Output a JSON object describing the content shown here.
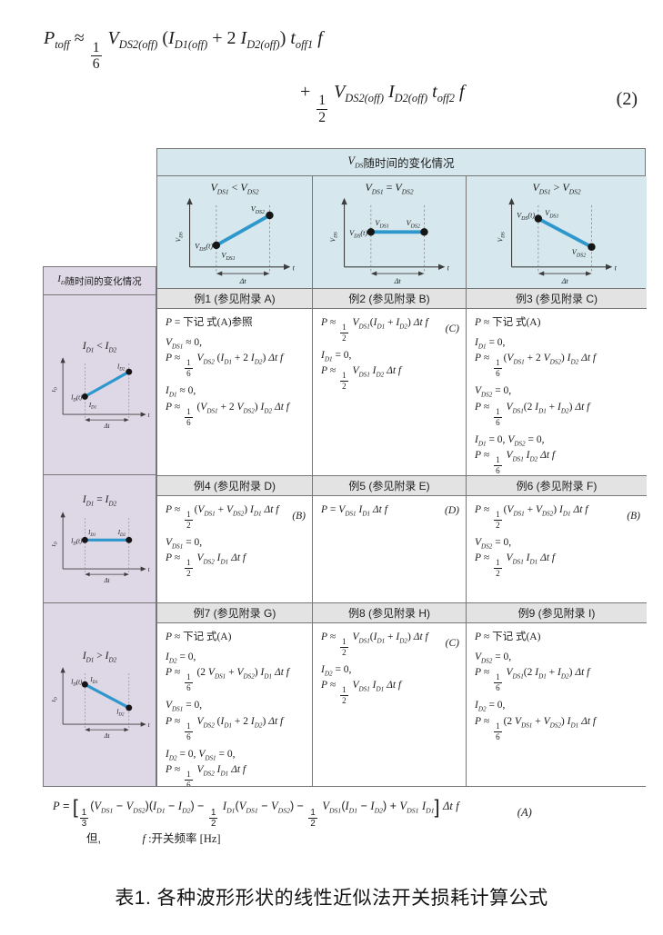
{
  "colors": {
    "header_blue": "#d6e8ee",
    "lavender": "#ddd7e6",
    "cell_header_gray": "#e3e3e3",
    "graph_line_blue": "#2e97cc",
    "border": "#767676"
  },
  "equation2": {
    "line1": "P_toff ≈ {1/6} V_DS2(off) (I_D1(off) + 2 I_D2(off)) t_off1 f",
    "line2": "+ {1/2} V_DS2(off) I_D2(off) t_off2 f",
    "number": "(2)"
  },
  "table": {
    "vds_header": "V_DS随时间的变化情况",
    "id_header": "I_D随时间的变化情况",
    "vds_columns": [
      {
        "title": "V_DS1 < V_DS2",
        "type": "rise"
      },
      {
        "title": "V_DS1 = V_DS2",
        "type": "flat"
      },
      {
        "title": "V_DS1 > V_DS2",
        "type": "fall"
      }
    ],
    "id_rows": [
      {
        "title": "I_D1 < I_D2",
        "type": "rise"
      },
      {
        "title": "I_D1 = I_D2",
        "type": "flat"
      },
      {
        "title": "I_D1 > I_D2",
        "type": "fall"
      }
    ],
    "graph_labels": {
      "vds": {
        "ylabel": {
          "b": "V",
          "s": "DS"
        },
        "pt": {
          "b": "V",
          "s": "DS",
          "a": "(t)"
        },
        "p1": {
          "b": "V",
          "s": "DS1"
        },
        "p2": {
          "b": "V",
          "s": "DS2"
        },
        "dt": "Δt",
        "x": "t"
      },
      "id": {
        "ylabel": {
          "b": "I",
          "s": "D"
        },
        "pt": {
          "b": "I",
          "s": "D",
          "a": "(t)"
        },
        "p1": {
          "b": "I",
          "s": "D1"
        },
        "p2": {
          "b": "I",
          "s": "D2"
        },
        "dt": "Δt",
        "x": "t"
      }
    },
    "cells": [
      {
        "title": "例1 (参见附录 A)",
        "groups": [
          [
            "P = 下记 式(A)参照"
          ],
          [
            "V_DS1 ≈ 0,",
            "P ≈ {1/6} V_DS2 (I_D1 + 2 I_D2) Δt f"
          ],
          [
            "I_D1 ≈ 0,",
            "P ≈ {1/6} (V_DS1 + 2 V_DS2) I_D2 Δt f"
          ]
        ]
      },
      {
        "title": "例2 (参见附录 B)",
        "groups": [
          [
            "P ≈ {1/2} V_DS1(I_D1 + I_D2) Δt f||(C)"
          ],
          [
            "I_D1 = 0,",
            "P ≈ {1/2} V_DS1 I_D2 Δt f"
          ]
        ]
      },
      {
        "title": "例3 (参见附录 C)",
        "groups": [
          [
            "P ≈ 下记 式(A)"
          ],
          [
            "I_D1 = 0,",
            "P ≈ {1/6}(V_DS1 + 2 V_DS2) I_D2 Δt f"
          ],
          [
            "V_DS2 = 0,",
            "P ≈ {1/6} V_DS1(2 I_D1 + I_D2) Δt f"
          ],
          [
            "I_D1 = 0, V_DS2 = 0,",
            "P ≈ {1/6} V_DS1 I_D2 Δt f"
          ]
        ]
      },
      {
        "title": "例4 (参见附录 D)",
        "groups": [
          [
            "P ≈ {1/2}(V_DS1 + V_DS2) I_D1 Δt f||(B)"
          ],
          [
            "V_DS1 = 0,",
            "P ≈ {1/2} V_DS2 I_D1 Δt f"
          ]
        ]
      },
      {
        "title": "例5 (参见附录 E)",
        "groups": [
          [
            "P = V_DS1 I_D1 Δt f||(D)"
          ]
        ]
      },
      {
        "title": "例6 (参见附录 F)",
        "groups": [
          [
            "P ≈ {1/2}(V_DS1 + V_DS2) I_D1 Δt f||(B)"
          ],
          [
            "V_DS2 = 0,",
            "P ≈ {1/2} V_DS1 I_D1 Δt f"
          ]
        ]
      },
      {
        "title": "例7 (参见附录 G)",
        "groups": [
          [
            "P ≈ 下记 式(A)"
          ],
          [
            "I_D2 = 0,",
            "P ≈ {1/6} (2 V_DS1 + V_DS2) I_D1 Δt f"
          ],
          [
            "V_DS1 = 0,",
            "P ≈ {1/6} V_DS2 (I_D1 + 2 I_D2) Δt f"
          ],
          [
            "I_D2 = 0, V_DS1 = 0,",
            "P ≈ {1/6} V_DS2 I_D1 Δt f"
          ]
        ]
      },
      {
        "title": "例8 (参见附录 H)",
        "groups": [
          [
            "P ≈ {1/2} V_DS1(I_D1 + I_D2) Δt f||(C)"
          ],
          [
            "I_D2 = 0,",
            "P ≈ {1/2} V_DS1 I_D1 Δt f"
          ]
        ]
      },
      {
        "title": "例9 (参见附录 I)",
        "groups": [
          [
            "P ≈ 下记 式(A)"
          ],
          [
            "V_DS2 = 0,",
            "P ≈ {1/6} V_DS1(2 I_D1 + I_D2) Δt f"
          ],
          [
            "I_D2 = 0,",
            "P ≈ {1/6}(2 V_DS1 + V_DS2) I_D1 Δt f"
          ]
        ]
      }
    ]
  },
  "formulaA": {
    "body": "P = ⟦{1/3}(V_DS1 − V_DS2)(I_D1 − I_D2) − {1/2} I_D1(V_DS1 − V_DS2) − {1/2} V_DS1(I_D1 − I_D2) + V_DS1 I_D1⟧ Δt f",
    "tag": "(A)"
  },
  "note": {
    "prefix": "但,",
    "body": "f :开关频率  [Hz]"
  },
  "caption": "表1. 各种波形形状的线性近似法开关损耗计算公式"
}
